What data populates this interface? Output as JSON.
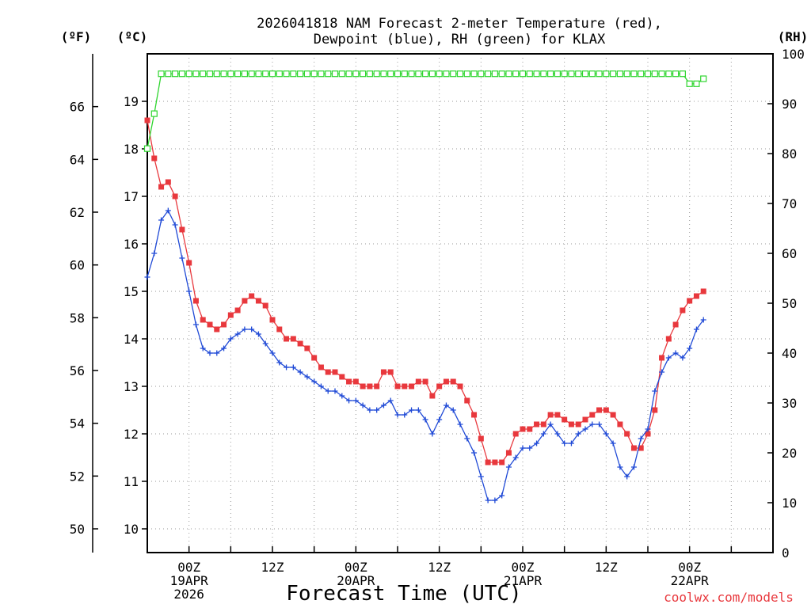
{
  "chart_data": {
    "type": "line",
    "title": "2026041818 NAM Forecast 2-meter Temperature (red),",
    "subtitle": "Dewpoint (blue), RH (green) for KLAX",
    "xlabel": "Forecast Time (UTC)",
    "credit": "coolwx.com/models",
    "units": {
      "left_f": "(ºF)",
      "left_c": "(ºC)",
      "right": "(RH)"
    },
    "x_start_hours": -6,
    "x_step_hours": 1,
    "xlim": [
      -6,
      84
    ],
    "x_ticks": [
      {
        "h": 0,
        "l1": "00Z",
        "l2": "19APR",
        "l3": "2026"
      },
      {
        "h": 12,
        "l1": "12Z",
        "l2": "",
        "l3": ""
      },
      {
        "h": 24,
        "l1": "00Z",
        "l2": "20APR",
        "l3": ""
      },
      {
        "h": 36,
        "l1": "12Z",
        "l2": "",
        "l3": ""
      },
      {
        "h": 48,
        "l1": "00Z",
        "l2": "21APR",
        "l3": ""
      },
      {
        "h": 60,
        "l1": "12Z",
        "l2": "",
        "l3": ""
      },
      {
        "h": 72,
        "l1": "00Z",
        "l2": "22APR",
        "l3": ""
      }
    ],
    "ylim_c": [
      9.5,
      20.0
    ],
    "yticks_c": [
      10,
      11,
      12,
      13,
      14,
      15,
      16,
      17,
      18,
      19
    ],
    "yticks_f": [
      50,
      52,
      54,
      56,
      58,
      60,
      62,
      64,
      66
    ],
    "ylim_rh": [
      0,
      100
    ],
    "yticks_rh": [
      0,
      10,
      20,
      30,
      40,
      50,
      60,
      70,
      80,
      90,
      100
    ],
    "series": [
      {
        "name": "2-meter Temperature",
        "axis": "c",
        "color": "#e8383d",
        "marker": "square-filled",
        "values": [
          18.6,
          17.8,
          17.2,
          17.3,
          17.0,
          16.3,
          15.6,
          14.8,
          14.4,
          14.3,
          14.2,
          14.3,
          14.5,
          14.6,
          14.8,
          14.9,
          14.8,
          14.7,
          14.4,
          14.2,
          14.0,
          14.0,
          13.9,
          13.8,
          13.6,
          13.4,
          13.3,
          13.3,
          13.2,
          13.1,
          13.1,
          13.0,
          13.0,
          13.0,
          13.3,
          13.3,
          13.0,
          13.0,
          13.0,
          13.1,
          13.1,
          12.8,
          13.0,
          13.1,
          13.1,
          13.0,
          12.7,
          12.4,
          11.9,
          11.4,
          11.4,
          11.4,
          11.6,
          12.0,
          12.1,
          12.1,
          12.2,
          12.2,
          12.4,
          12.4,
          12.3,
          12.2,
          12.2,
          12.3,
          12.4,
          12.5,
          12.5,
          12.4,
          12.2,
          12.0,
          11.7,
          11.7,
          12.0,
          12.5,
          13.6,
          14.0,
          14.3,
          14.6,
          14.8,
          14.9,
          15.0
        ]
      },
      {
        "name": "Dewpoint",
        "axis": "c",
        "color": "#1f49d6",
        "marker": "plus",
        "values": [
          15.3,
          15.8,
          16.5,
          16.7,
          16.4,
          15.7,
          15.0,
          14.3,
          13.8,
          13.7,
          13.7,
          13.8,
          14.0,
          14.1,
          14.2,
          14.2,
          14.1,
          13.9,
          13.7,
          13.5,
          13.4,
          13.4,
          13.3,
          13.2,
          13.1,
          13.0,
          12.9,
          12.9,
          12.8,
          12.7,
          12.7,
          12.6,
          12.5,
          12.5,
          12.6,
          12.7,
          12.4,
          12.4,
          12.5,
          12.5,
          12.3,
          12.0,
          12.3,
          12.6,
          12.5,
          12.2,
          11.9,
          11.6,
          11.1,
          10.6,
          10.6,
          10.7,
          11.3,
          11.5,
          11.7,
          11.7,
          11.8,
          12.0,
          12.2,
          12.0,
          11.8,
          11.8,
          12.0,
          12.1,
          12.2,
          12.2,
          12.0,
          11.8,
          11.3,
          11.1,
          11.3,
          11.9,
          12.1,
          12.9,
          13.3,
          13.6,
          13.7,
          13.6,
          13.8,
          14.2,
          14.4
        ]
      },
      {
        "name": "RH",
        "axis": "rh",
        "color": "#2ed52e",
        "marker": "square-open",
        "values": [
          81,
          88,
          96,
          96,
          96,
          96,
          96,
          96,
          96,
          96,
          96,
          96,
          96,
          96,
          96,
          96,
          96,
          96,
          96,
          96,
          96,
          96,
          96,
          96,
          96,
          96,
          96,
          96,
          96,
          96,
          96,
          96,
          96,
          96,
          96,
          96,
          96,
          96,
          96,
          96,
          96,
          96,
          96,
          96,
          96,
          96,
          96,
          96,
          96,
          96,
          96,
          96,
          96,
          96,
          96,
          96,
          96,
          96,
          96,
          96,
          96,
          96,
          96,
          96,
          96,
          96,
          96,
          96,
          96,
          96,
          96,
          96,
          96,
          96,
          96,
          96,
          96,
          96,
          94,
          94,
          95
        ]
      }
    ]
  }
}
